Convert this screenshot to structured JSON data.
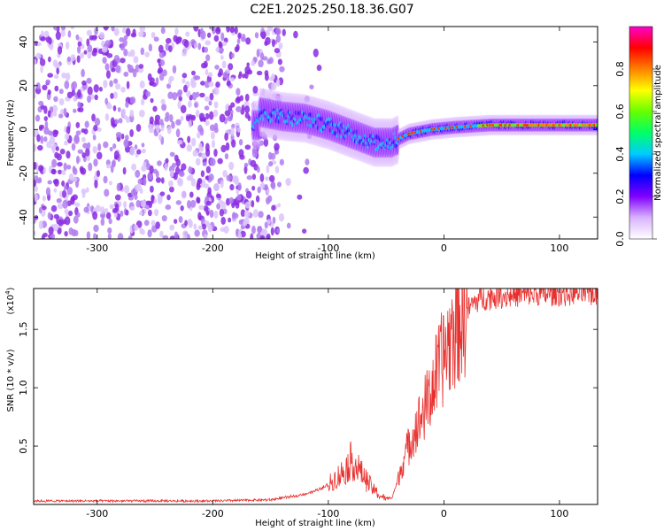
{
  "title": "C2E1.2025.250.18.36.G07",
  "chart_data": [
    {
      "type": "heatmap",
      "xlabel": "Height of straight line (km)",
      "ylabel": "Frequency (Hz)",
      "xlim": [
        -355,
        133
      ],
      "ylim": [
        -50,
        47
      ],
      "xticks": [
        -300,
        -200,
        -100,
        0,
        100
      ],
      "xtick_labels": [
        "-300",
        "-200",
        "-100",
        "0",
        "100"
      ],
      "yticks": [
        40,
        20,
        0,
        -20,
        -40
      ],
      "ytick_labels": [
        "40",
        "20",
        "0",
        "-20",
        "-40"
      ],
      "colorbar": {
        "label": "Normalized spectral amplitude",
        "range": [
          0,
          1
        ],
        "ticks": [
          0.0,
          0.2,
          0.4,
          0.6,
          0.8
        ],
        "tick_labels": [
          "0.0",
          "0.2",
          "0.4",
          "0.6",
          "0.8"
        ],
        "colors": [
          "#ffffff",
          "#d9b3ff",
          "#8000ff",
          "#0000ff",
          "#00ccff",
          "#00ff66",
          "#66ff00",
          "#ffff00",
          "#ff8000",
          "#ff0000",
          "#ff00cc"
        ]
      },
      "ridge": {
        "x": [
          -160,
          -140,
          -120,
          -100,
          -80,
          -60,
          -45,
          -30,
          -10,
          10,
          40,
          80,
          133
        ],
        "y": [
          8,
          6,
          5,
          2,
          -2,
          -6,
          -6,
          -2,
          0,
          1,
          2,
          2,
          2
        ]
      },
      "noise_region_x": [
        -355,
        -140
      ]
    },
    {
      "type": "line",
      "xlabel": "Height of straight line (km)",
      "ylabel": "SNR (10 * v/v)",
      "yscale_note": "(x10",
      "yscale_exp": "4",
      "xlim": [
        -355,
        133
      ],
      "ylim": [
        0,
        18500
      ],
      "xticks": [
        -300,
        -200,
        -100,
        0,
        100
      ],
      "xtick_labels": [
        "-300",
        "-200",
        "-100",
        "0",
        "100"
      ],
      "yticks": [
        5000,
        10000,
        15000
      ],
      "ytick_labels": [
        "0.5",
        "1.0",
        "1.5"
      ],
      "color": "#e8312f",
      "series": [
        {
          "name": "SNR",
          "x": [
            -355,
            -300,
            -250,
            -200,
            -150,
            -130,
            -120,
            -110,
            -100,
            -90,
            -85,
            -80,
            -75,
            -70,
            -65,
            -60,
            -55,
            -50,
            -45,
            -40,
            -35,
            -30,
            -25,
            -20,
            -15,
            -10,
            -5,
            0,
            5,
            10,
            15,
            20,
            25,
            30,
            40,
            50,
            60,
            80,
            100,
            120,
            133
          ],
          "y": [
            300,
            300,
            300,
            300,
            400,
            700,
            900,
            1200,
            1700,
            2500,
            3000,
            3800,
            3200,
            2500,
            1800,
            1200,
            700,
            500,
            600,
            2000,
            3800,
            5200,
            6400,
            7400,
            8600,
            10000,
            11500,
            12800,
            14000,
            15200,
            16000,
            16600,
            17200,
            17600,
            17800,
            17900,
            17950,
            18000,
            18050,
            18100,
            18100
          ]
        }
      ]
    }
  ]
}
